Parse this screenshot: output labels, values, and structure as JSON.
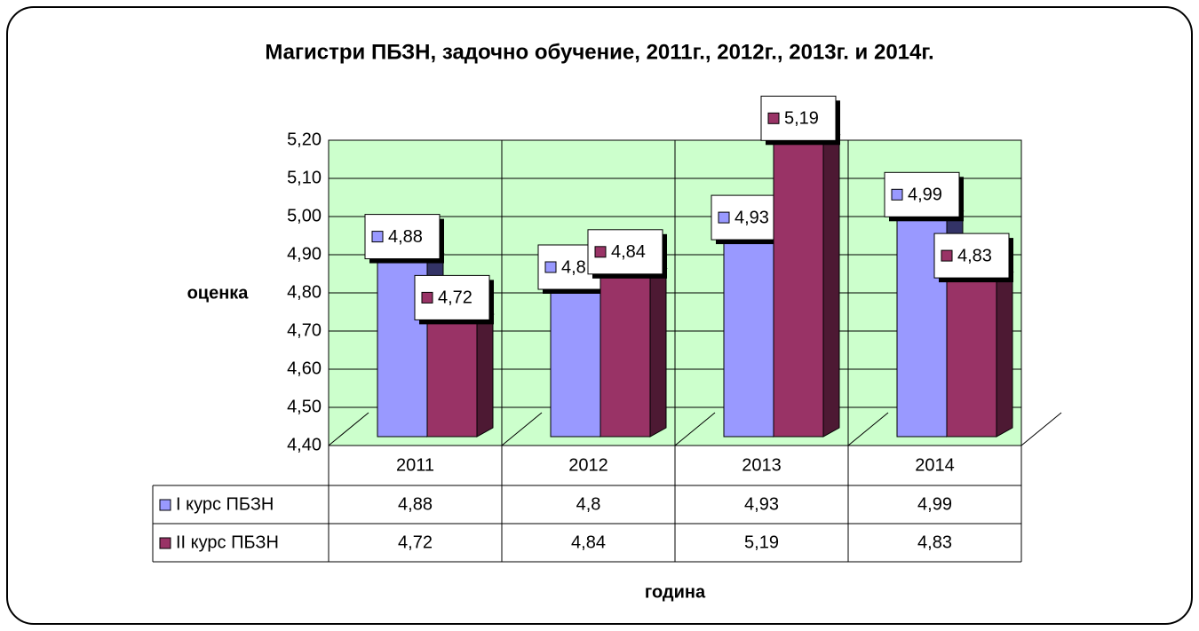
{
  "chart_data": {
    "type": "bar",
    "title": "Магистри ПБЗН, задочно обучение, 2011г., 2012г., 2013г. и 2014г.",
    "y_label": "оценка",
    "x_label": "година",
    "categories": [
      "2011",
      "2012",
      "2013",
      "2014"
    ],
    "series": [
      {
        "name": "I курс ПБЗН",
        "color": "#9999ff",
        "values": [
          4.88,
          4.8,
          4.93,
          4.99
        ],
        "value_labels": [
          "4,88",
          "4,8",
          "4,93",
          "4,99"
        ]
      },
      {
        "name": "II курс ПБЗН",
        "color": "#993366",
        "values": [
          4.72,
          4.84,
          5.19,
          4.83
        ],
        "value_labels": [
          "4,72",
          "4,84",
          "5,19",
          "4,83"
        ]
      }
    ],
    "ylim": [
      4.4,
      5.2
    ],
    "yticks": [
      {
        "value": 4.4,
        "label": "4,40"
      },
      {
        "value": 4.5,
        "label": "4,50"
      },
      {
        "value": 4.6,
        "label": "4,60"
      },
      {
        "value": 4.7,
        "label": "4,70"
      },
      {
        "value": 4.8,
        "label": "4,80"
      },
      {
        "value": 4.9,
        "label": "4,90"
      },
      {
        "value": 5.0,
        "label": "5,00"
      },
      {
        "value": 5.1,
        "label": "5,10"
      },
      {
        "value": 5.2,
        "label": "5,20"
      }
    ],
    "grid": true,
    "wall_color": "#ccffcc"
  }
}
